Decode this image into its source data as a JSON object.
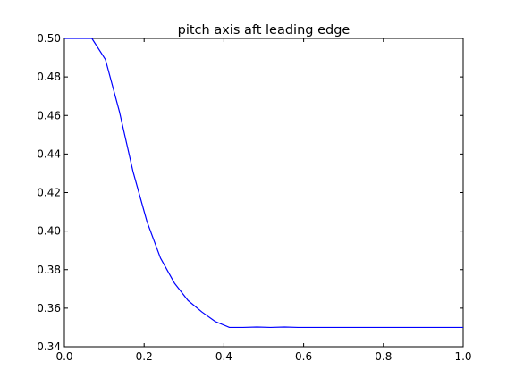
{
  "chart_data": {
    "type": "line",
    "title": "pitch axis aft leading edge",
    "xlabel": "",
    "ylabel": "",
    "xlim": [
      0.0,
      1.0
    ],
    "ylim": [
      0.34,
      0.5
    ],
    "xticks": [
      "0.0",
      "0.2",
      "0.4",
      "0.6",
      "0.8",
      "1.0"
    ],
    "yticks": [
      "0.34",
      "0.36",
      "0.38",
      "0.40",
      "0.42",
      "0.44",
      "0.46",
      "0.48",
      "0.50"
    ],
    "grid": false,
    "series": [
      {
        "color": "#0000ff",
        "x": [
          0.0,
          0.034,
          0.069,
          0.103,
          0.138,
          0.172,
          0.207,
          0.241,
          0.276,
          0.31,
          0.345,
          0.379,
          0.414,
          0.448,
          0.483,
          0.517,
          0.552,
          0.586,
          0.621,
          0.655,
          0.69,
          0.724,
          0.759,
          0.793,
          0.828,
          0.862,
          0.897,
          0.931,
          0.966,
          1.0
        ],
        "y": [
          0.5,
          0.5,
          0.5,
          0.489,
          0.462,
          0.431,
          0.405,
          0.386,
          0.373,
          0.364,
          0.358,
          0.353,
          0.35,
          0.35,
          0.3502,
          0.35,
          0.3502,
          0.35,
          0.35,
          0.35,
          0.35,
          0.35,
          0.35,
          0.35,
          0.35,
          0.35,
          0.35,
          0.35,
          0.35,
          0.35
        ]
      }
    ]
  }
}
